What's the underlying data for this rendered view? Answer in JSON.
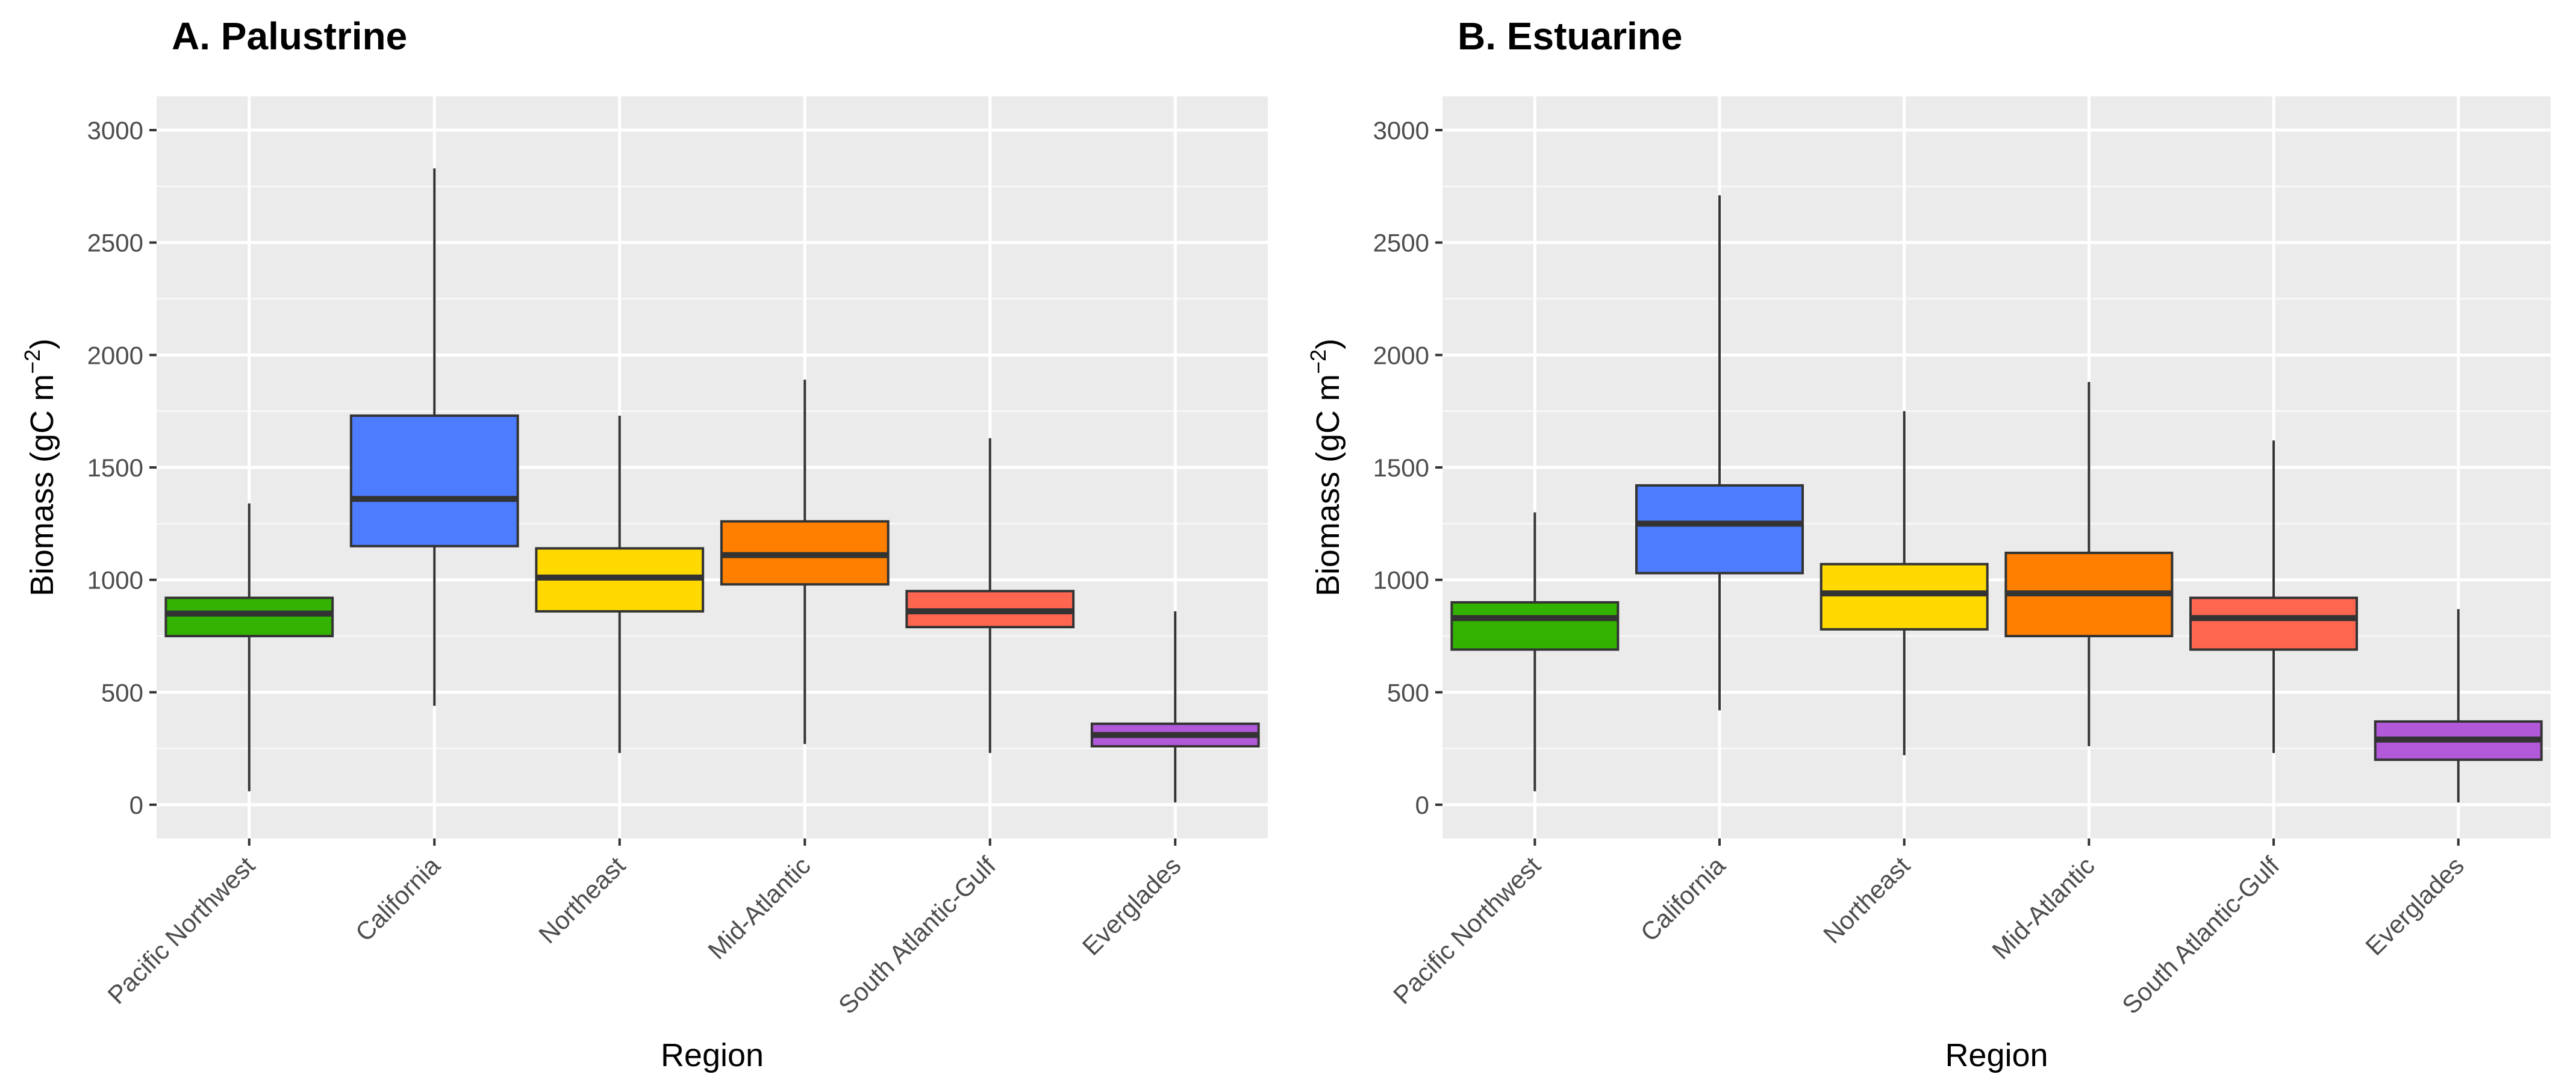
{
  "chart_data": [
    {
      "type": "boxplot",
      "title": "A. Palustrine",
      "xlabel": "Region",
      "ylabel": "Biomass (gC m",
      "ylabel_exponent": "−2",
      "ylabel_close": ")",
      "ylim": [
        -150,
        3150
      ],
      "yticks": [
        0,
        500,
        1000,
        1500,
        2000,
        2500,
        3000
      ],
      "categories": [
        "Pacific Northwest",
        "California",
        "Northeast",
        "Mid-Atlantic",
        "South Atlantic-Gulf",
        "Everglades"
      ],
      "boxes": [
        {
          "region": "Pacific Northwest",
          "min": 60,
          "q1": 750,
          "median": 850,
          "q3": 920,
          "max": 1340,
          "color": "#33b300"
        },
        {
          "region": "California",
          "min": 440,
          "q1": 1150,
          "median": 1360,
          "q3": 1730,
          "max": 2830,
          "color": "#4d7cff"
        },
        {
          "region": "Northeast",
          "min": 230,
          "q1": 860,
          "median": 1010,
          "q3": 1140,
          "max": 1730,
          "color": "#ffd900"
        },
        {
          "region": "Mid-Atlantic",
          "min": 270,
          "q1": 980,
          "median": 1110,
          "q3": 1260,
          "max": 1890,
          "color": "#ff8000"
        },
        {
          "region": "South Atlantic-Gulf",
          "min": 230,
          "q1": 790,
          "median": 860,
          "q3": 950,
          "max": 1630,
          "color": "#ff6650"
        },
        {
          "region": "Everglades",
          "min": 10,
          "q1": 260,
          "median": 310,
          "q3": 360,
          "max": 860,
          "color": "#b259d9"
        }
      ]
    },
    {
      "type": "boxplot",
      "title": "B. Estuarine",
      "xlabel": "Region",
      "ylabel": "Biomass (gC m",
      "ylabel_exponent": "−2",
      "ylabel_close": ")",
      "ylim": [
        -150,
        3150
      ],
      "yticks": [
        0,
        500,
        1000,
        1500,
        2000,
        2500,
        3000
      ],
      "categories": [
        "Pacific Northwest",
        "California",
        "Northeast",
        "Mid-Atlantic",
        "South Atlantic-Gulf",
        "Everglades"
      ],
      "boxes": [
        {
          "region": "Pacific Northwest",
          "min": 60,
          "q1": 690,
          "median": 830,
          "q3": 900,
          "max": 1300,
          "color": "#33b300"
        },
        {
          "region": "California",
          "min": 420,
          "q1": 1030,
          "median": 1250,
          "q3": 1420,
          "max": 2710,
          "color": "#4d7cff"
        },
        {
          "region": "Northeast",
          "min": 220,
          "q1": 780,
          "median": 940,
          "q3": 1070,
          "max": 1750,
          "color": "#ffd900"
        },
        {
          "region": "Mid-Atlantic",
          "min": 260,
          "q1": 750,
          "median": 940,
          "q3": 1120,
          "max": 1880,
          "color": "#ff8000"
        },
        {
          "region": "South Atlantic-Gulf",
          "min": 230,
          "q1": 690,
          "median": 830,
          "q3": 920,
          "max": 1620,
          "color": "#ff6650"
        },
        {
          "region": "Everglades",
          "min": 10,
          "q1": 200,
          "median": 290,
          "q3": 370,
          "max": 870,
          "color": "#b259d9"
        }
      ]
    }
  ]
}
